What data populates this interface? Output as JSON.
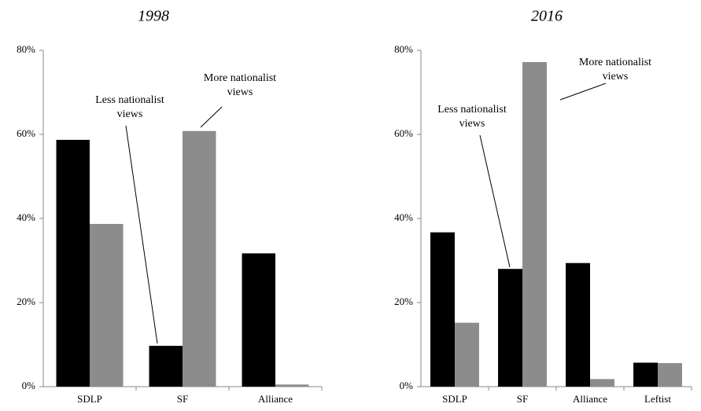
{
  "chart_data": [
    {
      "type": "bar",
      "title": "1998",
      "categories": [
        "SDLP",
        "SF",
        "Alliance"
      ],
      "series": [
        {
          "name": "Less nationalist views",
          "color": "#000000",
          "values": [
            58.7,
            9.7,
            31.7
          ]
        },
        {
          "name": "More nationalist views",
          "color": "#8c8c8c",
          "values": [
            38.7,
            60.8,
            0.5
          ]
        }
      ],
      "ylim": [
        0,
        80
      ],
      "yticks": [
        {
          "value": 0,
          "label": "0%"
        },
        {
          "value": 20,
          "label": "20%"
        },
        {
          "value": 40,
          "label": "40%"
        },
        {
          "value": 60,
          "label": "60%"
        },
        {
          "value": 80,
          "label": "80%"
        }
      ]
    },
    {
      "type": "bar",
      "title": "2016",
      "categories": [
        "SDLP",
        "SF",
        "Alliance",
        "Leftist"
      ],
      "series": [
        {
          "name": "Less nationalist views",
          "color": "#000000",
          "values": [
            36.7,
            28,
            29.4,
            5.7
          ]
        },
        {
          "name": "More nationalist views",
          "color": "#8c8c8c",
          "values": [
            15.2,
            77.2,
            1.8,
            5.6
          ]
        }
      ],
      "ylim": [
        0,
        80
      ],
      "yticks": [
        {
          "value": 0,
          "label": "0%"
        },
        {
          "value": 20,
          "label": "20%"
        },
        {
          "value": 40,
          "label": "40%"
        },
        {
          "value": 60,
          "label": "60%"
        },
        {
          "value": 80,
          "label": "80%"
        }
      ]
    }
  ]
}
